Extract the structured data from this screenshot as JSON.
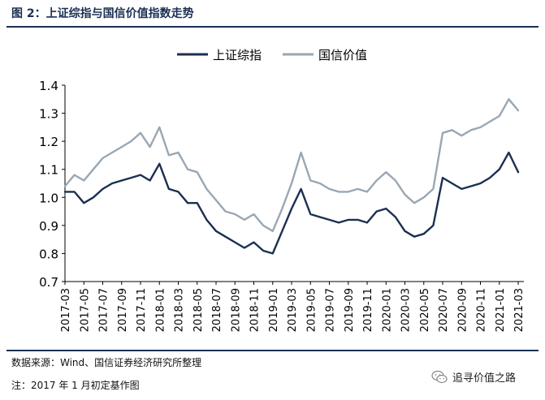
{
  "figure": {
    "title": "图 2：上证综指与国信价值指数走势",
    "source": "数据来源：Wind、国信证券经济研究所整理",
    "note": "注：2017 年 1 月初定基作图",
    "watermark": "追寻价值之路",
    "watermark_icon": "wechat-icon"
  },
  "chart_data": {
    "type": "line",
    "title": "",
    "xlabel": "",
    "ylabel": "",
    "ylim": [
      0.7,
      1.4
    ],
    "yticks": [
      "0.7",
      "0.8",
      "0.9",
      "1.0",
      "1.1",
      "1.2",
      "1.3",
      "1.4"
    ],
    "xticks": [
      "2017-03",
      "2017-05",
      "2017-07",
      "2017-09",
      "2017-11",
      "2018-01",
      "2018-03",
      "2018-05",
      "2018-07",
      "2018-09",
      "2018-11",
      "2019-01",
      "2019-03",
      "2019-05",
      "2019-07",
      "2019-09",
      "2019-11",
      "2020-01",
      "2020-03",
      "2020-05",
      "2020-07",
      "2020-09",
      "2020-11",
      "2021-01",
      "2021-03"
    ],
    "legend_position": "top",
    "grid": false,
    "x": [
      "2017-03",
      "2017-04",
      "2017-05",
      "2017-06",
      "2017-07",
      "2017-08",
      "2017-09",
      "2017-10",
      "2017-11",
      "2017-12",
      "2018-01",
      "2018-02",
      "2018-03",
      "2018-04",
      "2018-05",
      "2018-06",
      "2018-07",
      "2018-08",
      "2018-09",
      "2018-10",
      "2018-11",
      "2018-12",
      "2019-01",
      "2019-02",
      "2019-03",
      "2019-04",
      "2019-05",
      "2019-06",
      "2019-07",
      "2019-08",
      "2019-09",
      "2019-10",
      "2019-11",
      "2019-12",
      "2020-01",
      "2020-02",
      "2020-03",
      "2020-04",
      "2020-05",
      "2020-06",
      "2020-07",
      "2020-08",
      "2020-09",
      "2020-10",
      "2020-11",
      "2020-12",
      "2021-01",
      "2021-02",
      "2021-03"
    ],
    "series": [
      {
        "name": "上证综指",
        "color": "#1a2f52",
        "values": [
          1.02,
          1.02,
          0.98,
          1.0,
          1.03,
          1.05,
          1.06,
          1.07,
          1.08,
          1.06,
          1.12,
          1.03,
          1.02,
          0.98,
          0.98,
          0.92,
          0.88,
          0.86,
          0.84,
          0.82,
          0.84,
          0.81,
          0.8,
          0.88,
          0.96,
          1.03,
          0.94,
          0.93,
          0.92,
          0.91,
          0.92,
          0.92,
          0.91,
          0.95,
          0.96,
          0.93,
          0.88,
          0.86,
          0.87,
          0.9,
          1.07,
          1.05,
          1.03,
          1.04,
          1.05,
          1.07,
          1.1,
          1.16,
          1.09
        ]
      },
      {
        "name": "国信价值",
        "color": "#9aa7b3",
        "values": [
          1.04,
          1.08,
          1.06,
          1.1,
          1.14,
          1.16,
          1.18,
          1.2,
          1.23,
          1.18,
          1.25,
          1.15,
          1.16,
          1.1,
          1.09,
          1.03,
          0.99,
          0.95,
          0.94,
          0.92,
          0.94,
          0.9,
          0.88,
          0.96,
          1.05,
          1.16,
          1.06,
          1.05,
          1.03,
          1.02,
          1.02,
          1.03,
          1.02,
          1.06,
          1.09,
          1.06,
          1.01,
          0.98,
          1.0,
          1.03,
          1.23,
          1.24,
          1.22,
          1.24,
          1.25,
          1.27,
          1.29,
          1.35,
          1.31
        ]
      }
    ]
  }
}
